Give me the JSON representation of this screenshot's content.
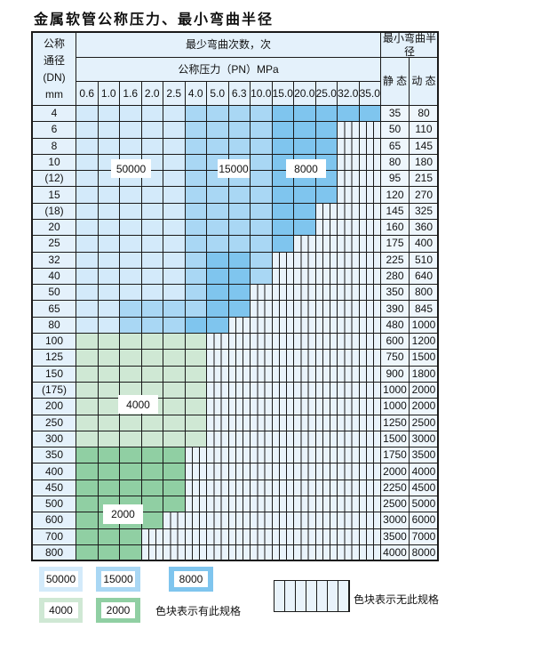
{
  "title": "金属软管公称压力、最小弯曲半径",
  "header": {
    "dn_lines": [
      "公称",
      "通径",
      "(DN)",
      "mm"
    ],
    "min_bend_count": "最少弯曲次数，次",
    "nominal_pressure": "公称压力（PN）MPa",
    "min_bend_radius": "最小弯曲半径",
    "static": "静 态",
    "dynamic": "动 态",
    "pressures": [
      "0.6",
      "1.0",
      "1.6",
      "2.0",
      "2.5",
      "4.0",
      "5.0",
      "6.3",
      "10.0",
      "15.0",
      "20.0",
      "25.0",
      "32.0",
      "35.0"
    ]
  },
  "zone_colors": {
    "L": "#d3eafa",
    "M": "#a9d7f4",
    "D": "#7fc5ee",
    "g": "#cfe8d4",
    "G": "#90cfa3",
    "H": "#e9f3fb"
  },
  "zone_legend": {
    "L": "50000",
    "M": "15000",
    "D": "8000",
    "g": "4000",
    "G": "2000",
    "H": "无此规格"
  },
  "rows": [
    {
      "dn": "4",
      "static": "35",
      "dynamic": "80",
      "cells": "LLLLLMMMMDDDDD"
    },
    {
      "dn": "6",
      "static": "50",
      "dynamic": "110",
      "cells": "LLLLLMMMMDDD--"
    },
    {
      "dn": "8",
      "static": "65",
      "dynamic": "145",
      "cells": "LLLLLMMMMDDD--"
    },
    {
      "dn": "10",
      "static": "80",
      "dynamic": "180",
      "cells": "LLLLLMMMMDDD--"
    },
    {
      "dn": "(12)",
      "static": "95",
      "dynamic": "215",
      "cells": "LLLLLMMMMDDD--"
    },
    {
      "dn": "15",
      "static": "120",
      "dynamic": "270",
      "cells": "LLLLLMMMMDDD--"
    },
    {
      "dn": "(18)",
      "static": "145",
      "dynamic": "325",
      "cells": "LLLLLMMMMDD---"
    },
    {
      "dn": "20",
      "static": "160",
      "dynamic": "360",
      "cells": "LLLLLMMMMDD---"
    },
    {
      "dn": "25",
      "static": "175",
      "dynamic": "400",
      "cells": "LLLLLMMMMD----"
    },
    {
      "dn": "32",
      "static": "225",
      "dynamic": "510",
      "cells": "LLLLLMDDM-----"
    },
    {
      "dn": "40",
      "static": "280",
      "dynamic": "640",
      "cells": "LLLLLMDDM-----"
    },
    {
      "dn": "50",
      "static": "350",
      "dynamic": "800",
      "cells": "LLLLLMDD------"
    },
    {
      "dn": "65",
      "static": "390",
      "dynamic": "845",
      "cells": "LLMMMMDD------"
    },
    {
      "dn": "80",
      "static": "480",
      "dynamic": "1000",
      "cells": "LLMMMDD-------"
    },
    {
      "dn": "100",
      "static": "600",
      "dynamic": "1200",
      "cells": "gggggg--------"
    },
    {
      "dn": "125",
      "static": "750",
      "dynamic": "1500",
      "cells": "gggggg--------"
    },
    {
      "dn": "150",
      "static": "900",
      "dynamic": "1800",
      "cells": "gggggg--------"
    },
    {
      "dn": "(175)",
      "static": "1000",
      "dynamic": "2000",
      "cells": "gggggg--------"
    },
    {
      "dn": "200",
      "static": "1000",
      "dynamic": "2000",
      "cells": "gggggg--------"
    },
    {
      "dn": "250",
      "static": "1250",
      "dynamic": "2500",
      "cells": "gggggg--------"
    },
    {
      "dn": "300",
      "static": "1500",
      "dynamic": "3000",
      "cells": "gggggg--------"
    },
    {
      "dn": "350",
      "static": "1750",
      "dynamic": "3500",
      "cells": "GGGGG---------"
    },
    {
      "dn": "400",
      "static": "2000",
      "dynamic": "4000",
      "cells": "GGGGG---------"
    },
    {
      "dn": "450",
      "static": "2250",
      "dynamic": "4500",
      "cells": "GGGGG---------"
    },
    {
      "dn": "500",
      "static": "2500",
      "dynamic": "5000",
      "cells": "GGGGG---------"
    },
    {
      "dn": "600",
      "static": "3000",
      "dynamic": "6000",
      "cells": "GGGG----------"
    },
    {
      "dn": "700",
      "static": "3500",
      "dynamic": "7000",
      "cells": "GGG-----------"
    },
    {
      "dn": "800",
      "static": "4000",
      "dynamic": "8000",
      "cells": "GGG-----------"
    }
  ],
  "zone_labels": [
    "50000",
    "15000",
    "8000",
    "4000",
    "2000"
  ],
  "legend": {
    "items": [
      "50000",
      "15000",
      "8000",
      "4000",
      "2000"
    ],
    "has_spec": "色块表示有此规格",
    "no_spec": "色块表示无此规格"
  }
}
